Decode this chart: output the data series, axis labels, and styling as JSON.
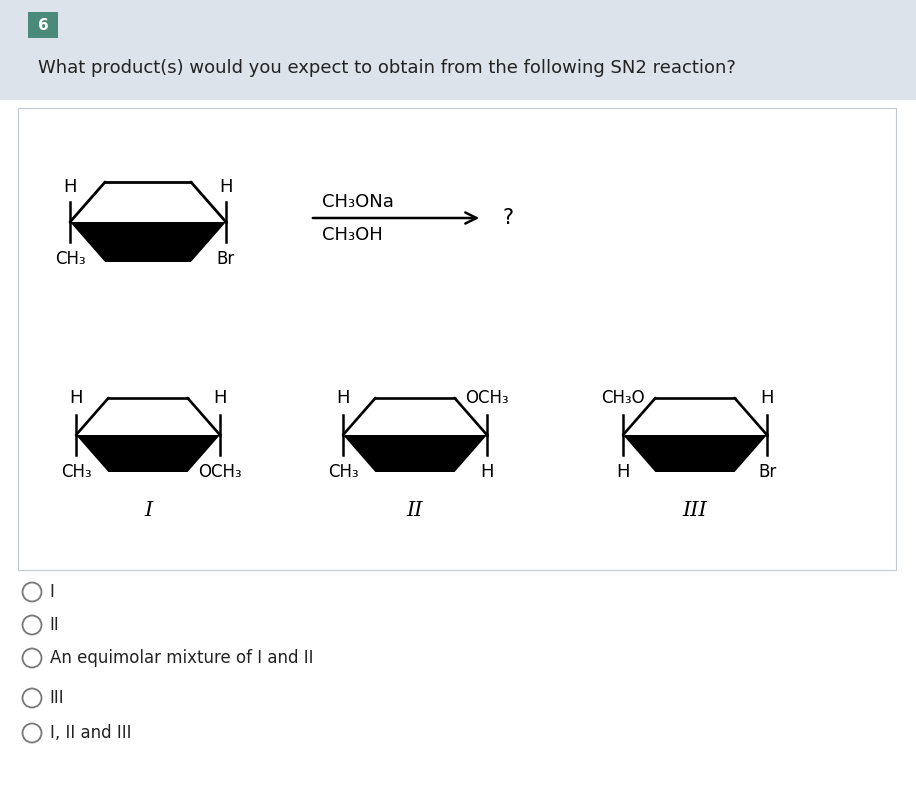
{
  "bg_header": "#e8edf2",
  "bg_white": "#ffffff",
  "bg_number_box": "#4a8a7a",
  "number_text": "6",
  "question_text": "What product(s) would you expect to obtain from the following SN2 reaction?",
  "reagent_line1": "CH₃ONa",
  "reagent_line2": "CH₃OH",
  "question_mark": "?",
  "choices": [
    "I",
    "II",
    "An equimolar mixture of I and II",
    "III",
    "I, II and III"
  ],
  "text_color": "#222222",
  "bg_header_color": "#dce3ea",
  "content_border": "#c0c8d0"
}
